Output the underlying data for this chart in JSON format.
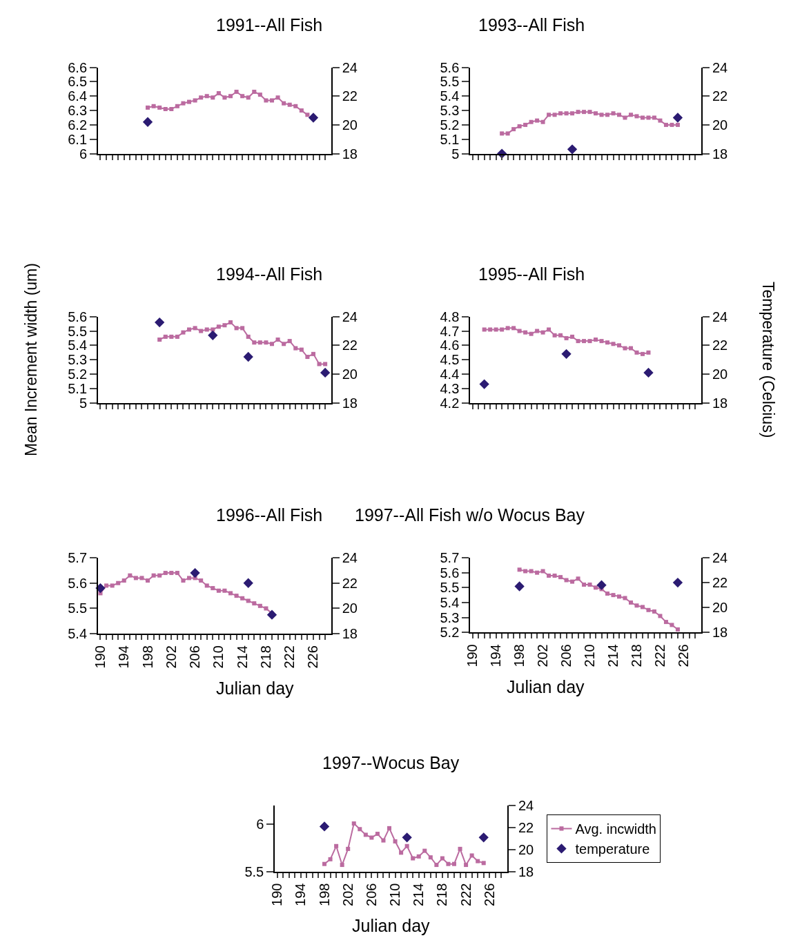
{
  "chart_data": [
    {
      "type": "line",
      "title": "1991--All Fish",
      "categories": [
        null,
        null,
        null,
        null,
        null,
        null,
        null,
        null,
        null,
        null,
        null,
        null,
        null,
        null,
        null,
        null,
        null,
        null,
        null,
        null,
        null,
        null,
        null,
        null,
        null,
        null,
        null,
        null,
        null,
        null,
        null,
        null,
        null,
        null,
        null,
        null,
        null,
        null,
        null
      ],
      "ylim": [
        6,
        6.6
      ],
      "yticks": [
        6,
        6.1,
        6.2,
        6.3,
        6.4,
        6.5,
        6.6
      ],
      "y2lim": [
        18,
        24
      ],
      "y2ticks": [
        18,
        20,
        22,
        24
      ],
      "series": [
        {
          "color": "#bb6ba0",
          "marker": "square",
          "values": [
            null,
            null,
            null,
            null,
            null,
            null,
            null,
            null,
            6.32,
            6.33,
            6.32,
            6.31,
            6.31,
            6.33,
            6.35,
            6.36,
            6.37,
            6.39,
            6.4,
            6.39,
            6.42,
            6.39,
            6.4,
            6.43,
            6.4,
            6.39,
            6.43,
            6.41,
            6.37,
            6.37,
            6.39,
            6.35,
            6.34,
            6.33,
            6.3,
            6.27,
            null,
            null,
            null
          ]
        },
        {
          "type": "scatter",
          "color": "#2b1b72",
          "marker": "diamond",
          "axis": "y2",
          "values": [
            null,
            null,
            null,
            null,
            null,
            null,
            null,
            null,
            20.2,
            null,
            null,
            null,
            null,
            null,
            null,
            null,
            null,
            null,
            null,
            null,
            null,
            null,
            null,
            null,
            null,
            null,
            null,
            null,
            null,
            null,
            null,
            null,
            null,
            null,
            null,
            null,
            20.5,
            null,
            null
          ]
        }
      ]
    },
    {
      "type": "line",
      "title": "1993--All Fish",
      "categories": [
        null,
        null,
        null,
        null,
        null,
        null,
        null,
        null,
        null,
        null,
        null,
        null,
        null,
        null,
        null,
        null,
        null,
        null,
        null,
        null,
        null,
        null,
        null,
        null,
        null,
        null,
        null,
        null,
        null,
        null,
        null,
        null,
        null,
        null,
        null,
        null,
        null,
        null,
        null
      ],
      "ylim": [
        5,
        5.6
      ],
      "yticks": [
        5,
        5.1,
        5.2,
        5.3,
        5.4,
        5.5,
        5.6
      ],
      "y2lim": [
        18,
        24
      ],
      "y2ticks": [
        18,
        20,
        22,
        24
      ],
      "series": [
        {
          "color": "#bb6ba0",
          "marker": "square",
          "values": [
            null,
            null,
            null,
            null,
            null,
            5.14,
            5.14,
            5.17,
            5.19,
            5.2,
            5.22,
            5.23,
            5.22,
            5.27,
            5.27,
            5.28,
            5.28,
            5.28,
            5.29,
            5.29,
            5.29,
            5.28,
            5.27,
            5.27,
            5.28,
            5.27,
            5.25,
            5.27,
            5.26,
            5.25,
            5.25,
            5.25,
            5.23,
            5.2,
            5.2,
            5.2,
            null,
            null,
            null
          ]
        },
        {
          "type": "scatter",
          "color": "#2b1b72",
          "marker": "diamond",
          "axis": "y2",
          "values": [
            null,
            null,
            null,
            null,
            null,
            18.0,
            null,
            null,
            null,
            null,
            null,
            null,
            null,
            null,
            null,
            null,
            null,
            18.3,
            null,
            null,
            null,
            null,
            null,
            null,
            null,
            null,
            null,
            null,
            null,
            null,
            null,
            null,
            null,
            null,
            null,
            20.5,
            null,
            null,
            null
          ]
        }
      ]
    },
    {
      "type": "line",
      "title": "1994--All Fish",
      "ylabel": "Mean Increment width (um)",
      "categories": [
        null,
        null,
        null,
        null,
        null,
        null,
        null,
        null,
        null,
        null,
        null,
        null,
        null,
        null,
        null,
        null,
        null,
        null,
        null,
        null,
        null,
        null,
        null,
        null,
        null,
        null,
        null,
        null,
        null,
        null,
        null,
        null,
        null,
        null,
        null,
        null,
        null,
        null,
        null
      ],
      "ylim": [
        5,
        5.6
      ],
      "yticks": [
        5,
        5.1,
        5.2,
        5.3,
        5.4,
        5.5,
        5.6
      ],
      "y2lim": [
        18,
        24
      ],
      "y2ticks": [
        18,
        20,
        22,
        24
      ],
      "series": [
        {
          "color": "#bb6ba0",
          "marker": "square",
          "values": [
            null,
            null,
            null,
            null,
            null,
            null,
            null,
            null,
            null,
            null,
            5.44,
            5.46,
            5.46,
            5.46,
            5.49,
            5.51,
            5.52,
            5.5,
            5.51,
            5.51,
            5.53,
            5.54,
            5.56,
            5.52,
            5.52,
            5.46,
            5.42,
            5.42,
            5.42,
            5.41,
            5.44,
            5.41,
            5.43,
            5.38,
            5.37,
            5.32,
            5.34,
            5.27,
            5.27
          ]
        },
        {
          "type": "scatter",
          "color": "#2b1b72",
          "marker": "diamond",
          "axis": "y2",
          "values": [
            null,
            null,
            null,
            null,
            null,
            null,
            null,
            null,
            null,
            null,
            23.6,
            null,
            null,
            null,
            null,
            null,
            null,
            null,
            null,
            22.7,
            null,
            null,
            null,
            null,
            null,
            21.2,
            null,
            null,
            null,
            null,
            null,
            null,
            null,
            null,
            null,
            null,
            null,
            null,
            20.1
          ]
        }
      ]
    },
    {
      "type": "line",
      "title": "1995--All Fish",
      "y2label": "Temperature (Celcius)",
      "categories": [
        null,
        null,
        null,
        null,
        null,
        null,
        null,
        null,
        null,
        null,
        null,
        null,
        null,
        null,
        null,
        null,
        null,
        null,
        null,
        null,
        null,
        null,
        null,
        null,
        null,
        null,
        null,
        null,
        null,
        null,
        null,
        null,
        null,
        null,
        null,
        null,
        null,
        null,
        null
      ],
      "ylim": [
        4.2,
        4.8
      ],
      "yticks": [
        4.2,
        4.3,
        4.4,
        4.5,
        4.6,
        4.7,
        4.8
      ],
      "y2lim": [
        18,
        24
      ],
      "y2ticks": [
        18,
        20,
        22,
        24
      ],
      "series": [
        {
          "color": "#bb6ba0",
          "marker": "square",
          "values": [
            null,
            null,
            4.71,
            4.71,
            4.71,
            4.71,
            4.72,
            4.72,
            4.7,
            4.69,
            4.68,
            4.7,
            4.69,
            4.71,
            4.67,
            4.67,
            4.65,
            4.66,
            4.63,
            4.63,
            4.63,
            4.64,
            4.63,
            4.62,
            4.61,
            4.6,
            4.58,
            4.58,
            4.55,
            4.54,
            4.55,
            null,
            null,
            null,
            null,
            null,
            null,
            null,
            null
          ]
        },
        {
          "type": "scatter",
          "color": "#2b1b72",
          "marker": "diamond",
          "axis": "y2",
          "values": [
            null,
            null,
            19.3,
            null,
            null,
            null,
            null,
            null,
            null,
            null,
            null,
            null,
            null,
            null,
            null,
            null,
            21.4,
            null,
            null,
            null,
            null,
            null,
            null,
            null,
            null,
            null,
            null,
            null,
            null,
            null,
            20.1,
            null,
            null,
            null,
            null,
            null,
            null,
            null,
            null
          ]
        }
      ]
    },
    {
      "type": "line",
      "title": "1996--All Fish",
      "xlabel": "Julian day",
      "xlim": [
        189.6,
        229
      ],
      "xticks": [
        190,
        {
          "value": 191,
          "label": null
        },
        {
          "value": 192,
          "label": null
        },
        {
          "value": 193,
          "label": null
        },
        194,
        {
          "value": 195,
          "label": null
        },
        {
          "value": 196,
          "label": null
        },
        {
          "value": 197,
          "label": null
        },
        198,
        {
          "value": 199,
          "label": null
        },
        {
          "value": 200,
          "label": null
        },
        {
          "value": 201,
          "label": null
        },
        202,
        {
          "value": 203,
          "label": null
        },
        {
          "value": 204,
          "label": null
        },
        {
          "value": 205,
          "label": null
        },
        206,
        {
          "value": 207,
          "label": null
        },
        {
          "value": 208,
          "label": null
        },
        {
          "value": 209,
          "label": null
        },
        210,
        {
          "value": 211,
          "label": null
        },
        {
          "value": 212,
          "label": null
        },
        {
          "value": 213,
          "label": null
        },
        214,
        {
          "value": 215,
          "label": null
        },
        {
          "value": 216,
          "label": null
        },
        {
          "value": 217,
          "label": null
        },
        218,
        {
          "value": 219,
          "label": null
        },
        {
          "value": 220,
          "label": null
        },
        {
          "value": 221,
          "label": null
        },
        222,
        {
          "value": 223,
          "label": null
        },
        {
          "value": 224,
          "label": null
        },
        {
          "value": 225,
          "label": null
        },
        226,
        {
          "value": 227,
          "label": null
        },
        {
          "value": 228,
          "label": null
        }
      ],
      "ylim": [
        5.4,
        5.7
      ],
      "yticks": [
        5.4,
        5.5,
        5.6,
        5.7
      ],
      "y2lim": [
        18,
        24
      ],
      "y2ticks": [
        18,
        20,
        22,
        24
      ],
      "series": [
        {
          "color": "#bb6ba0",
          "marker": "square",
          "x": [
            190,
            191,
            192,
            193,
            194,
            195,
            196,
            197,
            198,
            199,
            200,
            201,
            202,
            203,
            204,
            205,
            206,
            207,
            208,
            209,
            210,
            211,
            212,
            213,
            214,
            215,
            216,
            217,
            218,
            219
          ],
          "values": [
            5.56,
            5.59,
            5.59,
            5.6,
            5.61,
            5.63,
            5.62,
            5.62,
            5.61,
            5.63,
            5.63,
            5.64,
            5.64,
            5.64,
            5.61,
            5.62,
            5.62,
            5.61,
            5.59,
            5.58,
            5.57,
            5.57,
            5.56,
            5.55,
            5.54,
            5.53,
            5.52,
            5.51,
            5.5,
            5.48
          ]
        },
        {
          "type": "scatter",
          "color": "#2b1b72",
          "marker": "diamond",
          "axis": "y2",
          "x": [
            190,
            206,
            215,
            219
          ],
          "values": [
            21.6,
            22.8,
            22.0,
            19.5
          ]
        }
      ]
    },
    {
      "type": "line",
      "title": "1997--All Fish w/o Wocus Bay",
      "xlabel": "Julian day",
      "xlim": [
        189.6,
        229
      ],
      "xticks": [
        190,
        {
          "value": 191,
          "label": null
        },
        {
          "value": 192,
          "label": null
        },
        {
          "value": 193,
          "label": null
        },
        194,
        {
          "value": 195,
          "label": null
        },
        {
          "value": 196,
          "label": null
        },
        {
          "value": 197,
          "label": null
        },
        198,
        {
          "value": 199,
          "label": null
        },
        {
          "value": 200,
          "label": null
        },
        {
          "value": 201,
          "label": null
        },
        202,
        {
          "value": 203,
          "label": null
        },
        {
          "value": 204,
          "label": null
        },
        {
          "value": 205,
          "label": null
        },
        206,
        {
          "value": 207,
          "label": null
        },
        {
          "value": 208,
          "label": null
        },
        {
          "value": 209,
          "label": null
        },
        210,
        {
          "value": 211,
          "label": null
        },
        {
          "value": 212,
          "label": null
        },
        {
          "value": 213,
          "label": null
        },
        214,
        {
          "value": 215,
          "label": null
        },
        {
          "value": 216,
          "label": null
        },
        {
          "value": 217,
          "label": null
        },
        218,
        {
          "value": 219,
          "label": null
        },
        {
          "value": 220,
          "label": null
        },
        {
          "value": 221,
          "label": null
        },
        222,
        {
          "value": 223,
          "label": null
        },
        {
          "value": 224,
          "label": null
        },
        {
          "value": 225,
          "label": null
        },
        226,
        {
          "value": 227,
          "label": null
        },
        {
          "value": 228,
          "label": null
        }
      ],
      "ylim": [
        5.2,
        5.7
      ],
      "yticks": [
        5.2,
        5.3,
        5.4,
        5.5,
        5.6,
        5.7
      ],
      "y2lim": [
        18,
        24
      ],
      "y2ticks": [
        18,
        20,
        22,
        24
      ],
      "series": [
        {
          "color": "#bb6ba0",
          "marker": "square",
          "x": [
            198,
            199,
            200,
            201,
            202,
            203,
            204,
            205,
            206,
            207,
            208,
            209,
            210,
            211,
            212,
            213,
            214,
            215,
            216,
            217,
            218,
            219,
            220,
            221,
            222,
            223,
            224,
            225
          ],
          "values": [
            5.62,
            5.61,
            5.61,
            5.6,
            5.61,
            5.58,
            5.58,
            5.57,
            5.55,
            5.54,
            5.56,
            5.52,
            5.52,
            5.5,
            5.49,
            5.46,
            5.45,
            5.44,
            5.43,
            5.4,
            5.38,
            5.37,
            5.35,
            5.34,
            5.31,
            5.27,
            5.25,
            5.22
          ]
        },
        {
          "type": "scatter",
          "color": "#2b1b72",
          "marker": "diamond",
          "axis": "y2",
          "x": [
            198,
            212,
            225
          ],
          "values": [
            21.7,
            21.8,
            22.0
          ]
        }
      ]
    },
    {
      "type": "line",
      "title": "1997--Wocus Bay",
      "xlabel": "Julian day",
      "legend": "right",
      "xlim": [
        189.6,
        229
      ],
      "xticks": [
        190,
        {
          "value": 191,
          "label": null
        },
        {
          "value": 192,
          "label": null
        },
        {
          "value": 193,
          "label": null
        },
        194,
        {
          "value": 195,
          "label": null
        },
        {
          "value": 196,
          "label": null
        },
        {
          "value": 197,
          "label": null
        },
        198,
        {
          "value": 199,
          "label": null
        },
        {
          "value": 200,
          "label": null
        },
        {
          "value": 201,
          "label": null
        },
        202,
        {
          "value": 203,
          "label": null
        },
        {
          "value": 204,
          "label": null
        },
        {
          "value": 205,
          "label": null
        },
        206,
        {
          "value": 207,
          "label": null
        },
        {
          "value": 208,
          "label": null
        },
        {
          "value": 209,
          "label": null
        },
        210,
        {
          "value": 211,
          "label": null
        },
        {
          "value": 212,
          "label": null
        },
        {
          "value": 213,
          "label": null
        },
        214,
        {
          "value": 215,
          "label": null
        },
        {
          "value": 216,
          "label": null
        },
        {
          "value": 217,
          "label": null
        },
        218,
        {
          "value": 219,
          "label": null
        },
        {
          "value": 220,
          "label": null
        },
        {
          "value": 221,
          "label": null
        },
        222,
        {
          "value": 223,
          "label": null
        },
        {
          "value": 224,
          "label": null
        },
        {
          "value": 225,
          "label": null
        },
        226,
        {
          "value": 227,
          "label": null
        },
        {
          "value": 228,
          "label": null
        }
      ],
      "ylim": [
        5.5,
        6.2
      ],
      "yticks": [
        5.5,
        6
      ],
      "y2lim": [
        18,
        24
      ],
      "y2ticks": [
        18,
        20,
        22,
        24
      ],
      "series": [
        {
          "name": "Avg. incwidth",
          "color": "#bb6ba0",
          "marker": "square",
          "x": [
            198,
            199,
            200,
            201,
            202,
            203,
            204,
            205,
            206,
            207,
            208,
            209,
            210,
            211,
            212,
            213,
            214,
            215,
            216,
            217,
            218,
            219,
            220,
            221,
            222,
            223,
            224,
            225
          ],
          "values": [
            5.58,
            5.63,
            5.77,
            5.57,
            5.74,
            6.01,
            5.95,
            5.89,
            5.86,
            5.9,
            5.83,
            5.96,
            5.82,
            5.7,
            5.77,
            5.64,
            5.66,
            5.72,
            5.65,
            5.57,
            5.64,
            5.58,
            5.58,
            5.74,
            5.57,
            5.67,
            5.61,
            5.59
          ]
        },
        {
          "type": "scatter",
          "name": "temperature",
          "color": "#2b1b72",
          "marker": "diamond",
          "axis": "y2",
          "x": [
            198,
            212,
            225
          ],
          "values": [
            22.1,
            21.1,
            21.1
          ]
        }
      ]
    }
  ]
}
